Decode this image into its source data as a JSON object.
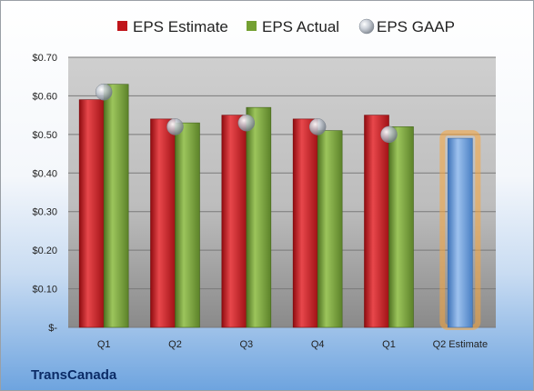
{
  "company": "TransCanada",
  "chart_data": {
    "type": "bar",
    "categories": [
      "Q1",
      "Q2",
      "Q3",
      "Q4",
      "Q1",
      "Q2 Estimate"
    ],
    "series": [
      {
        "name": "EPS Estimate",
        "values": [
          0.59,
          0.54,
          0.55,
          0.54,
          0.55,
          null
        ],
        "color": "#c0161b"
      },
      {
        "name": "EPS Actual",
        "values": [
          0.63,
          0.53,
          0.57,
          0.51,
          0.52,
          null
        ],
        "color": "#74a032"
      },
      {
        "name": "EPS GAAP",
        "values": [
          0.61,
          0.52,
          0.53,
          0.52,
          0.5,
          null
        ],
        "color": "#a8b0bc",
        "marker": "sphere"
      }
    ],
    "forecast": {
      "category": "Q2 Estimate",
      "value": 0.49,
      "color": "#6c9fde",
      "glow": "#f7a53c"
    },
    "ylim": [
      0,
      0.7
    ],
    "yticks": [
      0,
      0.1,
      0.2,
      0.3,
      0.4,
      0.5,
      0.6,
      0.7
    ],
    "ytick_labels": [
      "$-",
      "$0.10",
      "$0.20",
      "$0.30",
      "$0.40",
      "$0.50",
      "$0.60",
      "$0.70"
    ],
    "legend_position": "top",
    "grid": true
  }
}
